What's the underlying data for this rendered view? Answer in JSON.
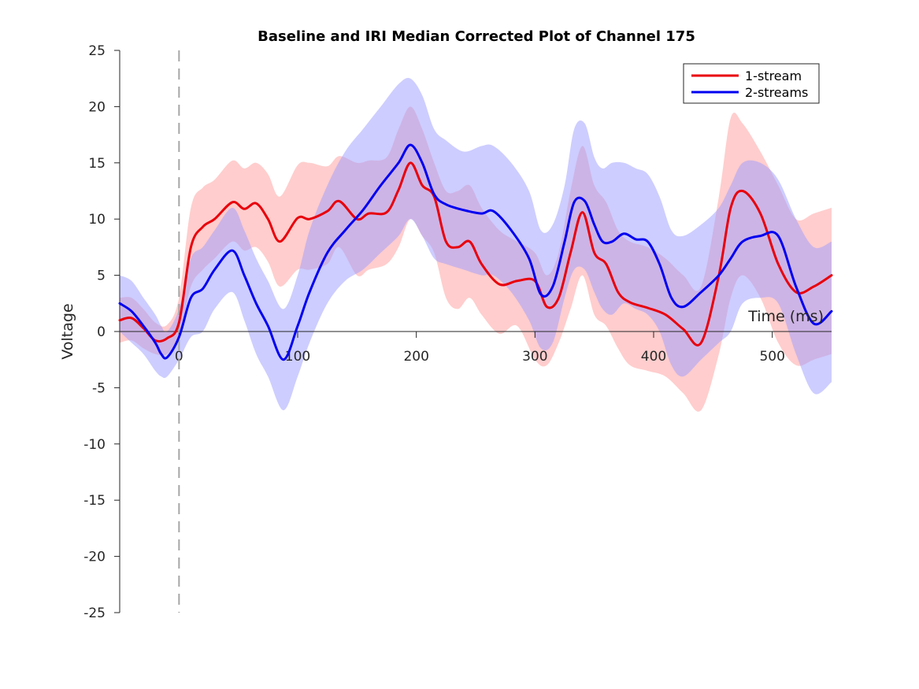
{
  "chart_data": {
    "type": "line",
    "title": "Baseline and IRI Median Corrected Plot of Channel 175",
    "xlabel": "Time (ms)",
    "ylabel": "Voltage",
    "xlim": [
      -50,
      550
    ],
    "ylim": [
      -25,
      25
    ],
    "xticks": [
      0,
      100,
      200,
      300,
      400,
      500
    ],
    "yticks": [
      -25,
      -20,
      -15,
      -10,
      -5,
      0,
      5,
      10,
      15,
      20,
      25
    ],
    "stimulus_onset": 0,
    "legend": {
      "position": "top-right"
    },
    "series": [
      {
        "name": "1-stream",
        "color": "#e8000b",
        "band_color": "#ff9b9b",
        "x": [
          -50,
          -40,
          -30,
          -20,
          -10,
          0,
          10,
          20,
          30,
          45,
          55,
          65,
          75,
          85,
          100,
          110,
          125,
          135,
          150,
          160,
          175,
          185,
          195,
          205,
          215,
          225,
          235,
          245,
          255,
          270,
          285,
          300,
          310,
          320,
          330,
          340,
          350,
          360,
          370,
          380,
          395,
          410,
          425,
          440,
          455,
          465,
          475,
          490,
          505,
          520,
          535,
          550
        ],
        "y": [
          1.0,
          1.2,
          0.3,
          -0.8,
          -0.6,
          0.8,
          7.5,
          9.3,
          10.0,
          11.5,
          10.9,
          11.4,
          10.0,
          8.0,
          10.1,
          10.0,
          10.7,
          11.6,
          10.0,
          10.5,
          10.6,
          12.6,
          15.0,
          13.0,
          12.0,
          8.0,
          7.5,
          8.0,
          6.0,
          4.2,
          4.5,
          4.5,
          2.2,
          3.0,
          7.0,
          10.6,
          7.0,
          6.0,
          3.5,
          2.6,
          2.1,
          1.5,
          0.2,
          -1.0,
          5.0,
          11.0,
          12.5,
          10.5,
          6.0,
          3.5,
          4.0,
          5.0
        ],
        "upper": [
          3.0,
          3.0,
          2.0,
          0.8,
          0.6,
          3.0,
          11.0,
          12.8,
          13.5,
          15.2,
          14.5,
          15.0,
          14.0,
          12.0,
          14.8,
          15.0,
          14.7,
          15.6,
          15.0,
          15.2,
          15.5,
          18.0,
          20.0,
          18.0,
          15.0,
          12.5,
          12.5,
          13.0,
          11.0,
          9.0,
          8.0,
          7.0,
          5.0,
          7.0,
          12.5,
          16.5,
          13.0,
          11.5,
          9.0,
          8.0,
          7.5,
          6.5,
          5.0,
          4.0,
          12.0,
          19.0,
          18.5,
          16.0,
          13.0,
          10.0,
          10.5,
          11.0
        ],
        "lower": [
          -1.0,
          -0.8,
          -1.5,
          -2.0,
          -2.0,
          -0.5,
          4.0,
          5.5,
          6.5,
          8.0,
          7.2,
          7.5,
          6.2,
          4.0,
          5.5,
          5.5,
          6.0,
          7.5,
          5.0,
          5.5,
          6.0,
          7.5,
          10.0,
          8.5,
          7.0,
          3.0,
          2.0,
          3.0,
          1.5,
          -0.2,
          0.5,
          -2.5,
          -3.0,
          -1.0,
          2.0,
          5.0,
          1.5,
          0.5,
          -1.5,
          -3.0,
          -3.5,
          -4.0,
          -5.5,
          -7.0,
          -2.0,
          3.0,
          5.0,
          3.0,
          -1.0,
          -3.0,
          -2.5,
          -2.0
        ]
      },
      {
        "name": "2-streams",
        "color": "#0000f0",
        "band_color": "#9b9bff",
        "x": [
          -50,
          -40,
          -30,
          -20,
          -15,
          -10,
          0,
          10,
          20,
          30,
          45,
          55,
          65,
          75,
          88,
          100,
          110,
          125,
          140,
          155,
          170,
          185,
          195,
          205,
          215,
          225,
          240,
          255,
          265,
          280,
          295,
          305,
          315,
          325,
          333,
          342,
          350,
          357,
          365,
          375,
          385,
          395,
          405,
          415,
          425,
          440,
          455,
          465,
          475,
          490,
          505,
          520,
          535,
          550
        ],
        "y": [
          2.5,
          1.8,
          0.5,
          -1.0,
          -2.0,
          -2.3,
          -0.5,
          3.0,
          3.8,
          5.5,
          7.2,
          5.0,
          2.5,
          0.5,
          -2.5,
          0.5,
          3.5,
          7.0,
          9.0,
          10.8,
          13.0,
          15.0,
          16.6,
          15.0,
          12.2,
          11.3,
          10.8,
          10.5,
          10.7,
          9.0,
          6.5,
          3.3,
          4.0,
          8.0,
          11.5,
          11.6,
          9.5,
          8.0,
          8.0,
          8.7,
          8.2,
          8.0,
          6.0,
          3.0,
          2.2,
          3.5,
          5.0,
          6.5,
          8.0,
          8.5,
          8.5,
          4.0,
          0.7,
          1.8
        ],
        "upper": [
          5.0,
          4.5,
          3.0,
          1.5,
          0.5,
          0.0,
          2.0,
          6.5,
          7.5,
          9.0,
          11.0,
          9.0,
          6.5,
          4.5,
          2.0,
          5.0,
          9.0,
          13.0,
          16.0,
          18.0,
          20.0,
          22.0,
          22.5,
          21.0,
          18.0,
          17.0,
          16.0,
          16.5,
          16.5,
          15.0,
          12.5,
          9.0,
          9.5,
          13.0,
          18.0,
          18.5,
          15.5,
          14.5,
          15.0,
          15.0,
          14.5,
          14.0,
          12.0,
          9.0,
          8.5,
          9.5,
          11.0,
          13.0,
          15.0,
          15.0,
          13.5,
          10.0,
          7.5,
          8.0
        ],
        "lower": [
          0.0,
          -1.0,
          -2.0,
          -3.5,
          -4.0,
          -4.0,
          -2.5,
          -0.5,
          0.0,
          2.0,
          3.5,
          1.0,
          -2.0,
          -4.0,
          -7.0,
          -4.0,
          -1.0,
          2.5,
          4.5,
          5.5,
          7.0,
          8.5,
          10.0,
          8.5,
          6.5,
          6.0,
          5.5,
          5.0,
          5.0,
          3.5,
          1.0,
          -1.5,
          -1.0,
          3.0,
          5.5,
          5.5,
          3.5,
          2.0,
          1.5,
          2.5,
          2.0,
          1.5,
          0.0,
          -3.0,
          -4.0,
          -2.5,
          -1.0,
          0.0,
          2.5,
          3.0,
          2.5,
          -2.0,
          -5.5,
          -4.5
        ]
      }
    ]
  }
}
